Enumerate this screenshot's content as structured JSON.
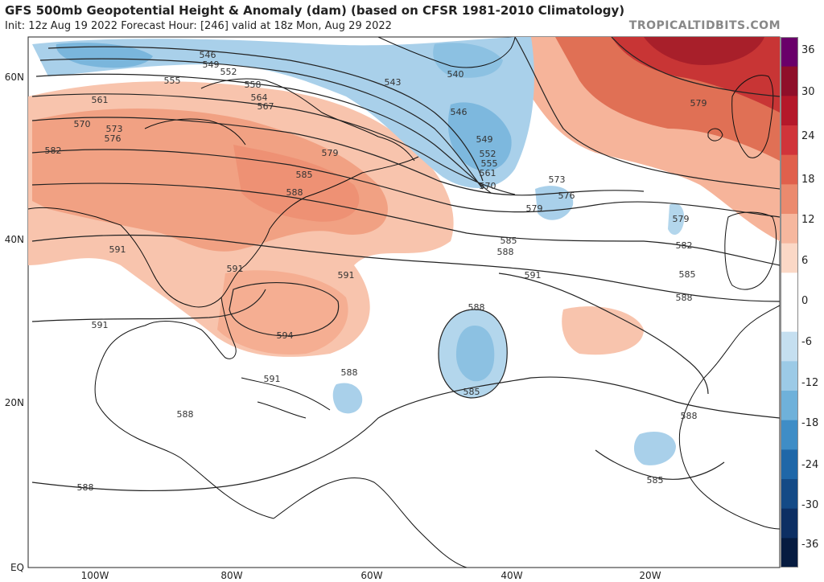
{
  "header": {
    "title": "GFS 500mb Geopotential Height & Anomaly (dam) (based on CFSR 1981-2010 Climatology)",
    "subtitle": "Init: 12z Aug 19 2022   Forecast Hour: [246]   valid at 18z Mon, Aug 29 2022",
    "brand": "TROPICALTIDBITS.COM"
  },
  "axes": {
    "lat_labels": [
      "60N",
      "40N",
      "20N",
      "EQ"
    ],
    "lon_labels": [
      "100W",
      "80W",
      "60W",
      "40W",
      "20W"
    ]
  },
  "colorbar": {
    "labels": [
      "36",
      "30",
      "24",
      "18",
      "12",
      "6",
      "0",
      "-6",
      "-12",
      "-18",
      "-24",
      "-30",
      "-36"
    ],
    "colors": [
      "#6a006a",
      "#8f0f2a",
      "#b4182a",
      "#d0343a",
      "#e0604c",
      "#eb8a6e",
      "#f6b79e",
      "#fbd8c6",
      "#ffffff",
      "#ffffff",
      "#c5dff0",
      "#9ccae6",
      "#6fb1da",
      "#3f8dc6",
      "#1f67a8",
      "#144a86",
      "#0d2f63",
      "#061b40"
    ]
  },
  "contours": {
    "labels": [
      "546",
      "549",
      "552",
      "555",
      "558",
      "561",
      "564",
      "567",
      "570",
      "573",
      "576",
      "579",
      "582",
      "585",
      "588",
      "591",
      "594",
      "543",
      "540",
      "546",
      "549",
      "552",
      "555",
      "561",
      "570",
      "573",
      "576",
      "579",
      "579",
      "585",
      "588",
      "591",
      "588",
      "585",
      "588",
      "591",
      "591",
      "588",
      "591",
      "591",
      "588",
      "588",
      "585",
      "588",
      "582",
      "585",
      "579"
    ]
  }
}
